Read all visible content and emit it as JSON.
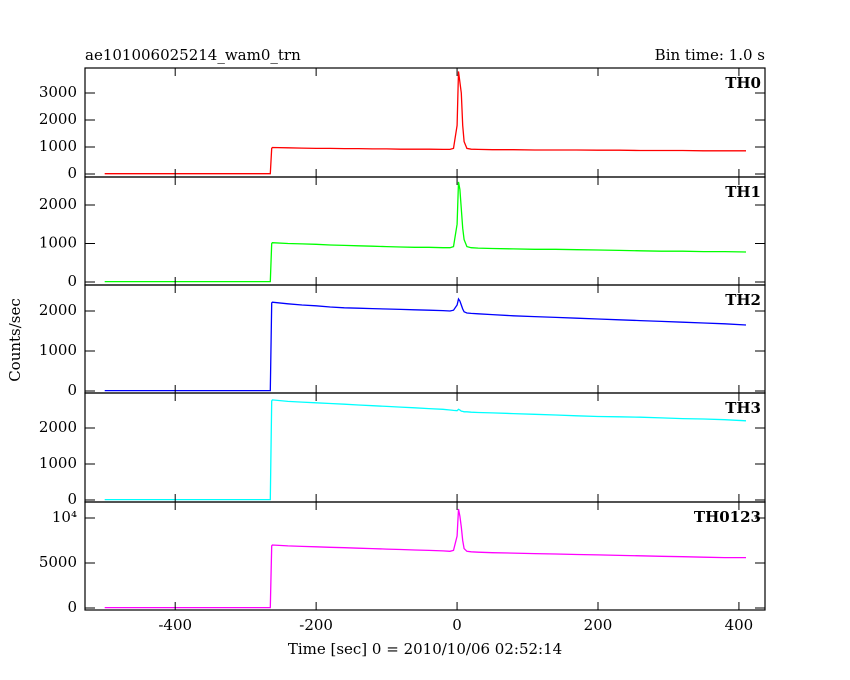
{
  "title": "ae101006025214_wam0_trn",
  "bin_time": "Bin time: 1.0 s",
  "ylabel": "Counts/sec",
  "xlabel": "Time [sec] 0 = 2010/10/06 02:52:14",
  "chart_data": [
    {
      "type": "line",
      "x": [
        -500,
        -450,
        -400,
        -350,
        -300,
        -265,
        -263,
        -262,
        -240,
        -220,
        -200,
        -180,
        -160,
        -140,
        -120,
        -100,
        -80,
        -60,
        -40,
        -20,
        -10,
        -5,
        0,
        2,
        4,
        6,
        8,
        10,
        14,
        20,
        30,
        50,
        80,
        110,
        140,
        170,
        200,
        230,
        260,
        290,
        320,
        350,
        380,
        410
      ],
      "series": [
        {
          "name": "TH0",
          "color": "#ff0000",
          "values": [
            10,
            10,
            10,
            10,
            10,
            10,
            950,
            980,
            970,
            960,
            950,
            950,
            940,
            940,
            930,
            930,
            920,
            920,
            920,
            910,
            910,
            950,
            1800,
            3800,
            3400,
            3000,
            1800,
            1200,
            950,
            920,
            910,
            900,
            900,
            890,
            890,
            890,
            880,
            880,
            870,
            870,
            870,
            860,
            860,
            860
          ]
        }
      ],
      "xlim": [
        -528,
        437
      ],
      "xticks": [
        -400,
        -200,
        0,
        200,
        400
      ],
      "ylim": [
        -111,
        3926
      ],
      "yticks": [
        0,
        1000,
        2000,
        3000
      ]
    },
    {
      "type": "line",
      "x": [
        -500,
        -450,
        -400,
        -350,
        -300,
        -265,
        -263,
        -262,
        -240,
        -220,
        -200,
        -180,
        -160,
        -140,
        -120,
        -100,
        -80,
        -60,
        -40,
        -20,
        -10,
        -5,
        0,
        2,
        4,
        6,
        8,
        10,
        14,
        20,
        30,
        50,
        80,
        110,
        140,
        170,
        200,
        230,
        260,
        290,
        320,
        350,
        380,
        410
      ],
      "series": [
        {
          "name": "TH1",
          "color": "#00ff00",
          "values": [
            10,
            10,
            10,
            10,
            10,
            10,
            1000,
            1020,
            1000,
            990,
            980,
            960,
            950,
            940,
            930,
            920,
            910,
            900,
            900,
            890,
            890,
            920,
            1500,
            2600,
            2400,
            1900,
            1400,
            1100,
            920,
            890,
            880,
            870,
            860,
            850,
            850,
            840,
            830,
            820,
            810,
            800,
            800,
            790,
            790,
            780
          ]
        }
      ],
      "xlim": [
        -528,
        437
      ],
      "xticks": [
        -400,
        -200,
        0,
        200,
        400
      ],
      "ylim": [
        -78,
        2727
      ],
      "yticks": [
        0,
        1000,
        2000
      ]
    },
    {
      "type": "line",
      "x": [
        -500,
        -450,
        -400,
        -350,
        -300,
        -265,
        -263,
        -262,
        -240,
        -220,
        -200,
        -180,
        -160,
        -140,
        -120,
        -100,
        -80,
        -60,
        -40,
        -20,
        -10,
        -5,
        0,
        2,
        4,
        6,
        8,
        10,
        14,
        20,
        30,
        50,
        80,
        110,
        140,
        170,
        200,
        230,
        260,
        290,
        320,
        350,
        380,
        410
      ],
      "series": [
        {
          "name": "TH2",
          "color": "#0000ff",
          "values": [
            10,
            10,
            10,
            10,
            10,
            10,
            2200,
            2220,
            2180,
            2150,
            2130,
            2100,
            2080,
            2070,
            2060,
            2050,
            2040,
            2030,
            2020,
            2010,
            2000,
            2020,
            2150,
            2300,
            2250,
            2150,
            2050,
            1980,
            1950,
            1940,
            1930,
            1910,
            1880,
            1860,
            1840,
            1820,
            1800,
            1780,
            1760,
            1740,
            1720,
            1700,
            1680,
            1650
          ]
        }
      ],
      "xlim": [
        -528,
        437
      ],
      "xticks": [
        -400,
        -200,
        0,
        200,
        400
      ],
      "ylim": [
        -50,
        2650
      ],
      "yticks": [
        0,
        1000,
        2000
      ]
    },
    {
      "type": "line",
      "x": [
        -500,
        -450,
        -400,
        -350,
        -300,
        -265,
        -263,
        -262,
        -240,
        -220,
        -200,
        -180,
        -160,
        -140,
        -120,
        -100,
        -80,
        -60,
        -40,
        -20,
        -10,
        -5,
        0,
        2,
        4,
        6,
        8,
        10,
        14,
        20,
        30,
        50,
        80,
        110,
        140,
        170,
        200,
        230,
        260,
        290,
        320,
        350,
        380,
        410
      ],
      "series": [
        {
          "name": "TH3",
          "color": "#00ffff",
          "values": [
            10,
            10,
            10,
            10,
            10,
            10,
            2750,
            2780,
            2740,
            2720,
            2700,
            2680,
            2660,
            2640,
            2620,
            2600,
            2580,
            2560,
            2540,
            2520,
            2500,
            2490,
            2480,
            2520,
            2500,
            2470,
            2460,
            2450,
            2450,
            2440,
            2430,
            2420,
            2400,
            2380,
            2360,
            2340,
            2320,
            2310,
            2300,
            2280,
            2260,
            2250,
            2230,
            2200
          ]
        }
      ],
      "xlim": [
        -528,
        437
      ],
      "xticks": [
        -400,
        -200,
        0,
        200,
        400
      ],
      "ylim": [
        -56,
        2972
      ],
      "yticks": [
        0,
        1000,
        2000
      ]
    },
    {
      "type": "line",
      "x": [
        -500,
        -450,
        -400,
        -350,
        -300,
        -265,
        -263,
        -262,
        -240,
        -220,
        -200,
        -180,
        -160,
        -140,
        -120,
        -100,
        -80,
        -60,
        -40,
        -20,
        -10,
        -5,
        0,
        2,
        4,
        6,
        8,
        10,
        14,
        20,
        30,
        50,
        80,
        110,
        140,
        170,
        200,
        230,
        260,
        290,
        320,
        350,
        380,
        410
      ],
      "series": [
        {
          "name": "TH0123",
          "color": "#ff00ff",
          "values": [
            40,
            40,
            40,
            40,
            40,
            40,
            6900,
            7000,
            6900,
            6850,
            6800,
            6750,
            6700,
            6650,
            6600,
            6550,
            6500,
            6450,
            6400,
            6350,
            6300,
            6400,
            8000,
            11000,
            10200,
            9000,
            7500,
            6600,
            6300,
            6250,
            6200,
            6150,
            6100,
            6050,
            6000,
            5950,
            5900,
            5850,
            5800,
            5750,
            5700,
            5650,
            5600,
            5600
          ]
        }
      ],
      "xlim": [
        -528,
        437
      ],
      "xticks": [
        -400,
        -200,
        0,
        200,
        400
      ],
      "ylim": [
        -222,
        11778
      ],
      "yticks": [
        0,
        5000,
        {
          "value": 10000,
          "label": "10⁴"
        }
      ]
    }
  ]
}
